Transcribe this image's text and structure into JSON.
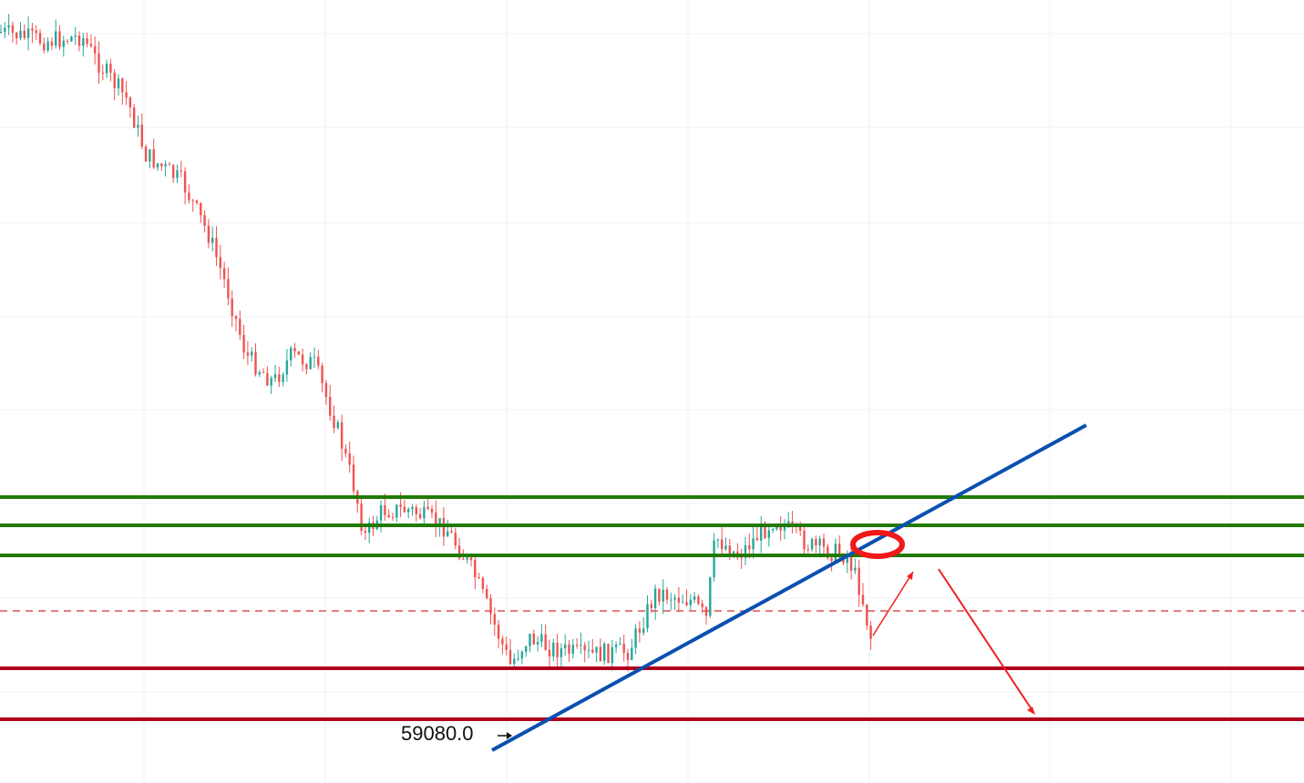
{
  "annotation": {
    "label": "59080.0"
  }
}
